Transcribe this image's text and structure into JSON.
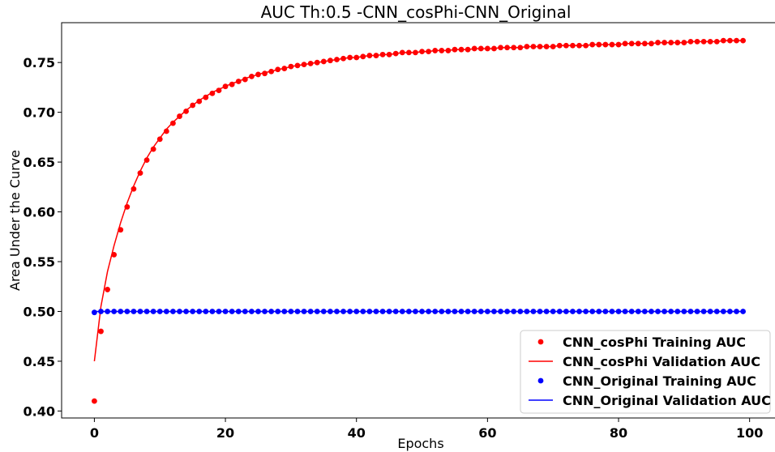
{
  "chart_data": {
    "type": "line",
    "title": "AUC Th:0.5 -CNN_cosPhi-CNN_Original",
    "xlabel": "Epochs",
    "ylabel": "Area Under the Curve",
    "xlim": [
      -5,
      104
    ],
    "ylim": [
      0.393,
      0.79
    ],
    "xticks": [
      0,
      20,
      40,
      60,
      80,
      100
    ],
    "yticks": [
      0.4,
      0.45,
      0.5,
      0.55,
      0.6,
      0.65,
      0.7,
      0.75
    ],
    "xtick_labels": [
      "0",
      "20",
      "40",
      "60",
      "80",
      "100"
    ],
    "ytick_labels": [
      "0.40",
      "0.45",
      "0.50",
      "0.55",
      "0.60",
      "0.65",
      "0.70",
      "0.75"
    ],
    "grid": false,
    "legend_position": "lower-right",
    "x": [
      0,
      1,
      2,
      3,
      4,
      5,
      6,
      7,
      8,
      9,
      10,
      11,
      12,
      13,
      14,
      15,
      16,
      17,
      18,
      19,
      20,
      21,
      22,
      23,
      24,
      25,
      26,
      27,
      28,
      29,
      30,
      31,
      32,
      33,
      34,
      35,
      36,
      37,
      38,
      39,
      40,
      41,
      42,
      43,
      44,
      45,
      46,
      47,
      48,
      49,
      50,
      51,
      52,
      53,
      54,
      55,
      56,
      57,
      58,
      59,
      60,
      61,
      62,
      63,
      64,
      65,
      66,
      67,
      68,
      69,
      70,
      71,
      72,
      73,
      74,
      75,
      76,
      77,
      78,
      79,
      80,
      81,
      82,
      83,
      84,
      85,
      86,
      87,
      88,
      89,
      90,
      91,
      92,
      93,
      94,
      95,
      96,
      97,
      98,
      99
    ],
    "series": [
      {
        "name": "CNN_cosPhi Training AUC",
        "style": "markers",
        "color": "#ff0000",
        "values": [
          0.41,
          0.48,
          0.522,
          0.557,
          0.582,
          0.605,
          0.623,
          0.639,
          0.652,
          0.663,
          0.673,
          0.681,
          0.689,
          0.696,
          0.701,
          0.707,
          0.711,
          0.715,
          0.719,
          0.722,
          0.726,
          0.728,
          0.731,
          0.733,
          0.736,
          0.738,
          0.739,
          0.741,
          0.743,
          0.744,
          0.746,
          0.747,
          0.748,
          0.749,
          0.75,
          0.751,
          0.752,
          0.753,
          0.754,
          0.755,
          0.755,
          0.756,
          0.757,
          0.757,
          0.758,
          0.758,
          0.759,
          0.76,
          0.76,
          0.76,
          0.761,
          0.761,
          0.762,
          0.762,
          0.762,
          0.763,
          0.763,
          0.763,
          0.764,
          0.764,
          0.764,
          0.764,
          0.765,
          0.765,
          0.765,
          0.765,
          0.766,
          0.766,
          0.766,
          0.766,
          0.766,
          0.767,
          0.767,
          0.767,
          0.767,
          0.767,
          0.768,
          0.768,
          0.768,
          0.768,
          0.768,
          0.769,
          0.769,
          0.769,
          0.769,
          0.769,
          0.77,
          0.77,
          0.77,
          0.77,
          0.77,
          0.771,
          0.771,
          0.771,
          0.771,
          0.771,
          0.772,
          0.772,
          0.772,
          0.772
        ]
      },
      {
        "name": "CNN_cosPhi Validation AUC",
        "style": "line",
        "color": "#ff0000",
        "values": [
          0.45,
          0.505,
          0.54,
          0.566,
          0.589,
          0.609,
          0.626,
          0.641,
          0.654,
          0.665,
          0.674,
          0.683,
          0.69,
          0.696,
          0.702,
          0.707,
          0.712,
          0.716,
          0.72,
          0.723,
          0.726,
          0.729,
          0.731,
          0.734,
          0.736,
          0.738,
          0.74,
          0.741,
          0.743,
          0.744,
          0.746,
          0.747,
          0.748,
          0.749,
          0.75,
          0.751,
          0.752,
          0.753,
          0.754,
          0.755,
          0.755,
          0.756,
          0.757,
          0.757,
          0.758,
          0.758,
          0.759,
          0.76,
          0.76,
          0.76,
          0.761,
          0.761,
          0.762,
          0.762,
          0.762,
          0.763,
          0.763,
          0.763,
          0.764,
          0.764,
          0.764,
          0.764,
          0.765,
          0.765,
          0.765,
          0.765,
          0.766,
          0.766,
          0.766,
          0.766,
          0.766,
          0.767,
          0.767,
          0.767,
          0.767,
          0.767,
          0.768,
          0.768,
          0.768,
          0.768,
          0.768,
          0.769,
          0.769,
          0.769,
          0.769,
          0.769,
          0.77,
          0.77,
          0.77,
          0.77,
          0.77,
          0.771,
          0.771,
          0.771,
          0.771,
          0.771,
          0.772,
          0.772,
          0.772,
          0.772
        ]
      },
      {
        "name": "CNN_Original Training AUC",
        "style": "markers",
        "color": "#0000ff",
        "values": [
          0.499,
          0.5,
          0.5,
          0.5,
          0.5,
          0.5,
          0.5,
          0.5,
          0.5,
          0.5,
          0.5,
          0.5,
          0.5,
          0.5,
          0.5,
          0.5,
          0.5,
          0.5,
          0.5,
          0.5,
          0.5,
          0.5,
          0.5,
          0.5,
          0.5,
          0.5,
          0.5,
          0.5,
          0.5,
          0.5,
          0.5,
          0.5,
          0.5,
          0.5,
          0.5,
          0.5,
          0.5,
          0.5,
          0.5,
          0.5,
          0.5,
          0.5,
          0.5,
          0.5,
          0.5,
          0.5,
          0.5,
          0.5,
          0.5,
          0.5,
          0.5,
          0.5,
          0.5,
          0.5,
          0.5,
          0.5,
          0.5,
          0.5,
          0.5,
          0.5,
          0.5,
          0.5,
          0.5,
          0.5,
          0.5,
          0.5,
          0.5,
          0.5,
          0.5,
          0.5,
          0.5,
          0.5,
          0.5,
          0.5,
          0.5,
          0.5,
          0.5,
          0.5,
          0.5,
          0.5,
          0.5,
          0.5,
          0.5,
          0.5,
          0.5,
          0.5,
          0.5,
          0.5,
          0.5,
          0.5,
          0.5,
          0.5,
          0.5,
          0.5,
          0.5,
          0.5,
          0.5,
          0.5,
          0.5,
          0.5
        ]
      },
      {
        "name": "CNN_Original Validation AUC",
        "style": "line",
        "color": "#0000ff",
        "values": [
          0.5,
          0.5,
          0.5,
          0.5,
          0.5,
          0.5,
          0.5,
          0.5,
          0.5,
          0.5,
          0.5,
          0.5,
          0.5,
          0.5,
          0.5,
          0.5,
          0.5,
          0.5,
          0.5,
          0.5,
          0.5,
          0.5,
          0.5,
          0.5,
          0.5,
          0.5,
          0.5,
          0.5,
          0.5,
          0.5,
          0.5,
          0.5,
          0.5,
          0.5,
          0.5,
          0.5,
          0.5,
          0.5,
          0.5,
          0.5,
          0.5,
          0.5,
          0.5,
          0.5,
          0.5,
          0.5,
          0.5,
          0.5,
          0.5,
          0.5,
          0.5,
          0.5,
          0.5,
          0.5,
          0.5,
          0.5,
          0.5,
          0.5,
          0.5,
          0.5,
          0.5,
          0.5,
          0.5,
          0.5,
          0.5,
          0.5,
          0.5,
          0.5,
          0.5,
          0.5,
          0.5,
          0.5,
          0.5,
          0.5,
          0.5,
          0.5,
          0.5,
          0.5,
          0.5,
          0.5,
          0.5,
          0.5,
          0.5,
          0.5,
          0.5,
          0.5,
          0.5,
          0.5,
          0.5,
          0.5,
          0.5,
          0.5,
          0.5,
          0.5,
          0.5,
          0.5,
          0.5,
          0.5,
          0.5,
          0.5
        ]
      }
    ]
  }
}
